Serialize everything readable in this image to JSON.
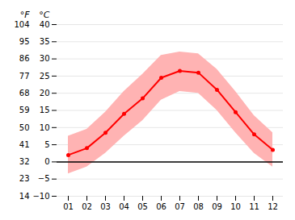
{
  "chart_data": {
    "type": "line",
    "categories": [
      "01",
      "02",
      "03",
      "04",
      "05",
      "06",
      "07",
      "08",
      "09",
      "10",
      "11",
      "12"
    ],
    "series": [
      {
        "type": "area",
        "color": "#ffb3b3",
        "lower": [
          -3.5,
          -1.5,
          2.5,
          7.5,
          12.0,
          18.0,
          20.5,
          20.0,
          15.0,
          8.5,
          2.5,
          -1.5
        ],
        "upper": [
          7.5,
          9.5,
          14.5,
          20.5,
          25.5,
          31.0,
          32.0,
          31.5,
          27.0,
          20.5,
          13.5,
          8.5
        ]
      },
      {
        "type": "line",
        "color": "#ff0000",
        "marker": "o",
        "values": [
          2.0,
          4.0,
          8.5,
          14.0,
          18.5,
          24.5,
          26.5,
          26.0,
          21.0,
          14.5,
          8.0,
          3.5
        ]
      }
    ],
    "ylim": [
      -10,
      40
    ],
    "yticks": [
      -10,
      -5,
      0,
      5,
      10,
      15,
      20,
      25,
      30,
      35,
      40
    ],
    "ylabel": "°C",
    "y2lim": [
      14,
      104
    ],
    "y2ticks": [
      14,
      23,
      32,
      41,
      50,
      59,
      68,
      77,
      86,
      95,
      104
    ],
    "y2label": "°F",
    "hlines": [
      {
        "value": 0,
        "color": "#000000"
      }
    ],
    "grid": true
  }
}
